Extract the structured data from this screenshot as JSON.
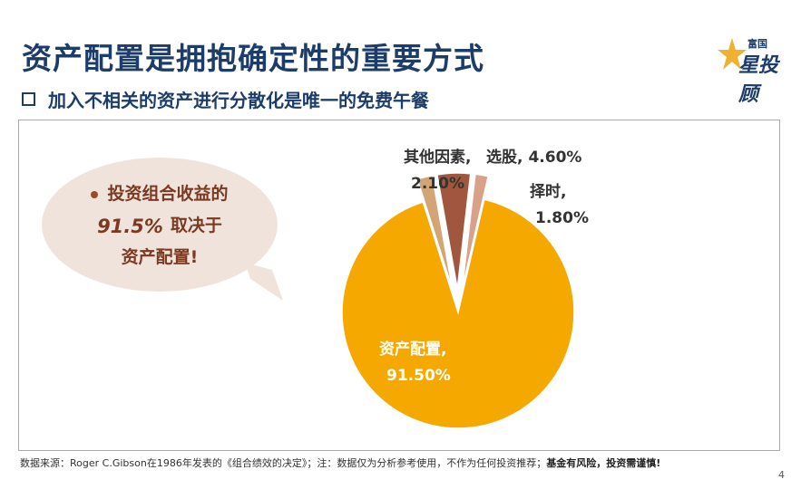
{
  "header": {
    "title": "资产配置是拥抱确定性的重要方式",
    "subtitle": "加入不相关的资产进行分散化是唯一的免费午餐"
  },
  "logo": {
    "top_text": "富国",
    "main_text": "星投顾"
  },
  "callout": {
    "line1": "投资组合收益的",
    "line2_pct": "91.5%",
    "line2_text": "取决于",
    "line3": "资产配置!"
  },
  "chart_data": {
    "type": "pie",
    "title": "",
    "slices": [
      {
        "name": "资产配置",
        "value": 91.5,
        "label_name": "资产配置,",
        "label_value": "91.50%",
        "color": "#f5a800"
      },
      {
        "name": "其他因素",
        "value": 2.1,
        "label_name": "其他因素,",
        "label_value": "2.10%",
        "color": "#d4a574"
      },
      {
        "name": "选股",
        "value": 4.6,
        "label_name": "选股,",
        "label_value": "4.60%",
        "color": "#a0573e"
      },
      {
        "name": "择时",
        "value": 1.8,
        "label_name": "择时,",
        "label_value": "1.80%",
        "color": "#d9a08a"
      }
    ],
    "exploded": [
      "其他因素",
      "选股",
      "择时"
    ],
    "legend": "none"
  },
  "footer": {
    "source_text": "数据来源：Roger C.Gibson在1986年发表的《组合绩效的决定》；注：数据仅为分析参考使用，不作为任何投资推荐；",
    "risk_text": "基金有风险，投资需谨慎!"
  },
  "page_number": "4"
}
